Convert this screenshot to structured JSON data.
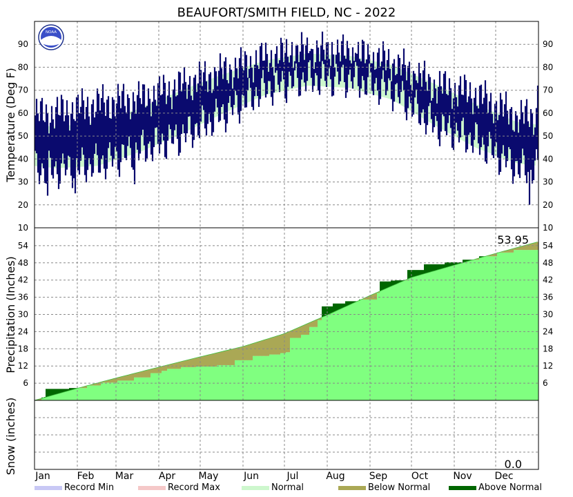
{
  "chart_data": {
    "type": "climate-summary",
    "title": "BEAUFORT/SMITH FIELD, NC - 2022",
    "year": 2022,
    "months": [
      "Jan",
      "Feb",
      "Mar",
      "Apr",
      "May",
      "Jun",
      "Jul",
      "Aug",
      "Sep",
      "Oct",
      "Nov",
      "Dec"
    ],
    "logo_text": "NOAA",
    "colors": {
      "record_min": "#c8c8f5",
      "record_max": "#f5c8c8",
      "normal_band": "#cdf7cd",
      "temp_bars": "#0a0a6e",
      "precip_normal_fill": "#80ff80",
      "below_normal": "#aaa855",
      "above_normal": "#006600",
      "grid": "#888888"
    },
    "temperature": {
      "ylabel": "Temperature (Deg F)",
      "ylim": [
        10,
        100
      ],
      "ticks": [
        10,
        20,
        30,
        40,
        50,
        60,
        70,
        80,
        90
      ],
      "tick_labels": [
        "10",
        "20",
        "30",
        "40",
        "50",
        "60",
        "70",
        "80",
        "90"
      ],
      "normal_high_by_month": [
        54,
        56,
        62,
        70,
        77,
        83,
        86,
        85,
        81,
        73,
        64,
        56
      ],
      "normal_low_by_month": [
        36,
        37,
        43,
        51,
        60,
        68,
        72,
        71,
        66,
        55,
        45,
        38
      ],
      "monthly_typical_high": [
        60,
        64,
        66,
        72,
        78,
        84,
        87,
        86,
        82,
        72,
        68,
        58
      ],
      "monthly_typical_low": [
        35,
        38,
        44,
        50,
        60,
        71,
        75,
        75,
        70,
        55,
        48,
        36
      ],
      "extremes": [
        {
          "date": "Jan 10",
          "low": 24
        },
        {
          "date": "Jan 30",
          "low": 25
        },
        {
          "date": "Mar 14",
          "low": 29
        },
        {
          "date": "Jul 6",
          "high": 91
        },
        {
          "date": "Aug 4",
          "high": 91
        },
        {
          "date": "Dec 25",
          "low": 20
        },
        {
          "date": "Dec 31",
          "high": 72
        }
      ]
    },
    "precipitation": {
      "ylabel": "Precipitation (Inches)",
      "ylim": [
        0,
        60
      ],
      "ticks": [
        6,
        12,
        18,
        24,
        30,
        36,
        42,
        48,
        54
      ],
      "tick_labels": [
        "6",
        "12",
        "18",
        "24",
        "30",
        "36",
        "42",
        "48",
        "54"
      ],
      "total_label": "53.95",
      "normal_cumulative": [
        0,
        4.2,
        7.8,
        11.6,
        15.2,
        18.8,
        23.3,
        29.8,
        36.6,
        42.9,
        47.2,
        51.3,
        55.4
      ],
      "observed_cumulative": [
        [
          1,
          0.1
        ],
        [
          5,
          1.0
        ],
        [
          7,
          1.2
        ],
        [
          8,
          4.0
        ],
        [
          25,
          4.3
        ],
        [
          38,
          5.2
        ],
        [
          48,
          6.2
        ],
        [
          60,
          6.9
        ],
        [
          72,
          8.0
        ],
        [
          84,
          9.5
        ],
        [
          92,
          10.3
        ],
        [
          96,
          11.0
        ],
        [
          106,
          11.6
        ],
        [
          117,
          11.8
        ],
        [
          132,
          12.3
        ],
        [
          145,
          14.0
        ],
        [
          158,
          15.5
        ],
        [
          170,
          16.0
        ],
        [
          178,
          16.5
        ],
        [
          182,
          16.8
        ],
        [
          185,
          21.8
        ],
        [
          193,
          22.9
        ],
        [
          199,
          25.6
        ],
        [
          205,
          28.0
        ],
        [
          208,
          32.8
        ],
        [
          216,
          33.8
        ],
        [
          225,
          34.6
        ],
        [
          235,
          35.2
        ],
        [
          248,
          37.5
        ],
        [
          250,
          41.5
        ],
        [
          258,
          41.8
        ],
        [
          261,
          41.9
        ],
        [
          270,
          45.5
        ],
        [
          282,
          47.5
        ],
        [
          297,
          48.2
        ],
        [
          310,
          49.1
        ],
        [
          322,
          50.3
        ],
        [
          335,
          51.6
        ],
        [
          347,
          52.5
        ],
        [
          365,
          53.95
        ]
      ]
    },
    "snow": {
      "ylabel": "Snow (inches)",
      "total_label": "0.0",
      "values": []
    },
    "legend": [
      {
        "label": "Record Min",
        "color": "#c8c8f5"
      },
      {
        "label": "Record Max",
        "color": "#f5c8c8"
      },
      {
        "label": "Normal",
        "color": "#cdf7cd"
      },
      {
        "label": "Below Normal",
        "color": "#aaa855"
      },
      {
        "label": "Above Normal",
        "color": "#006600"
      }
    ]
  }
}
